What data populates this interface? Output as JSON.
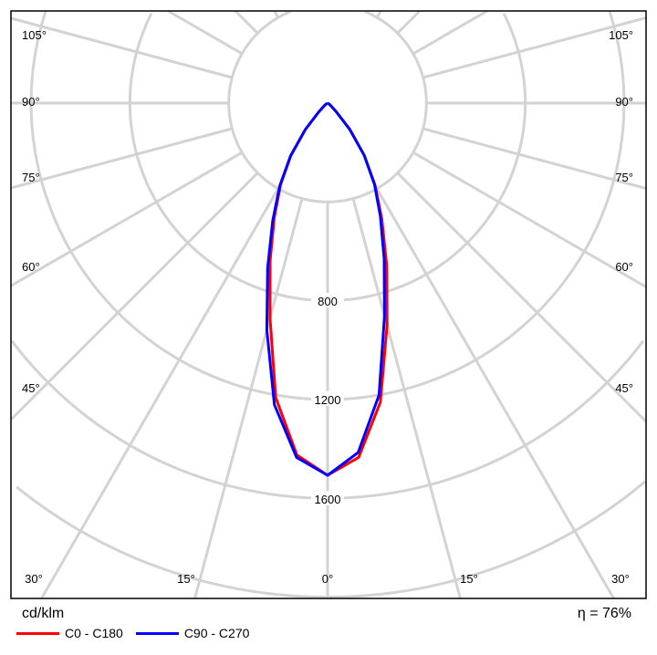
{
  "chart_data": {
    "type": "polar-line",
    "unit_label": "cd/klm",
    "efficiency_label": "η = 76%",
    "radial_ticks": [
      400,
      800,
      1200,
      1600,
      2000
    ],
    "radial_tick_labels": [
      "800",
      "1200",
      "1600"
    ],
    "radial_range": [
      0,
      2000
    ],
    "angle_step_deg": 15,
    "angle_labels": {
      "bottom": [
        "30°",
        "15°",
        "0°",
        "15°",
        "30°"
      ],
      "sides": [
        "45°",
        "60°",
        "75°",
        "90°",
        "105°"
      ]
    },
    "angles_deg": [
      0,
      5,
      10,
      15,
      20,
      25,
      30,
      35,
      40,
      45,
      50,
      55,
      60,
      70,
      80,
      90
    ],
    "series": [
      {
        "name": "C0 - C180",
        "color": "#ff0000",
        "right": [
          1507,
          1440,
          1230,
          930,
          700,
          520,
          385,
          260,
          140,
          50,
          20,
          10,
          5,
          0,
          0,
          0
        ],
        "left": [
          1507,
          1430,
          1210,
          900,
          680,
          510,
          380,
          258,
          140,
          50,
          20,
          10,
          5,
          0,
          0,
          0
        ]
      },
      {
        "name": "C90 - C270",
        "color": "#0000ff",
        "right": [
          1507,
          1420,
          1200,
          890,
          670,
          505,
          380,
          258,
          140,
          50,
          20,
          10,
          5,
          0,
          0,
          0
        ],
        "left": [
          1507,
          1440,
          1240,
          950,
          710,
          525,
          388,
          262,
          140,
          50,
          20,
          10,
          5,
          0,
          0,
          0
        ]
      }
    ],
    "grid_color": "#d3d3d3"
  }
}
